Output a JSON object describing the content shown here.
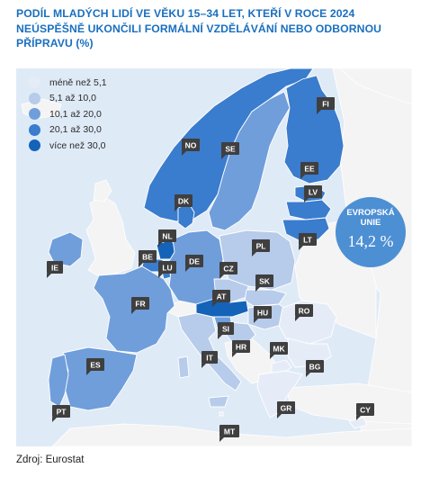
{
  "title": {
    "lines": [
      "PODÍL MLADÝCH LIDÍ VE VĚKU 15–34 LET, KTEŘÍ V ROCE 2024",
      "NEÚSPĚŠNĚ UKONČILI FORMÁLNÍ VZDĚLÁVÁNÍ NEBO ODBORNOU",
      "PŘÍPRAVU (%)"
    ]
  },
  "legend": {
    "items": [
      {
        "label": "méně než 5,1",
        "color": "#e6ecf7"
      },
      {
        "label": "5,1  až 10,0",
        "color": "#b7cbea"
      },
      {
        "label": "10,1 až 20,0",
        "color": "#6f9edb"
      },
      {
        "label": "20,1 až 30,0",
        "color": "#3a7ccd"
      },
      {
        "label": "více než 30,0",
        "color": "#1463b8"
      }
    ]
  },
  "eu_average": {
    "label_line1": "EVROPSKÁ",
    "label_line2": "UNIE",
    "value": "14,2 %"
  },
  "colors": {
    "sea": "#dfeaf7",
    "non_eu_land": "#f4f4f4",
    "tag_bg": "#3f3f3f",
    "tag_text": "#ffffff",
    "title": "#1a6fbf"
  },
  "countries": [
    {
      "code": "FI",
      "class": 3
    },
    {
      "code": "SE",
      "class": 2
    },
    {
      "code": "NO",
      "class": 3
    },
    {
      "code": "EE",
      "class": 3
    },
    {
      "code": "LV",
      "class": 3
    },
    {
      "code": "LT",
      "class": 3
    },
    {
      "code": "DK",
      "class": 3
    },
    {
      "code": "NL",
      "class": 4
    },
    {
      "code": "BE",
      "class": 3
    },
    {
      "code": "LU",
      "class": 3
    },
    {
      "code": "DE",
      "class": 2
    },
    {
      "code": "PL",
      "class": 1
    },
    {
      "code": "CZ",
      "class": 1
    },
    {
      "code": "SK",
      "class": 1
    },
    {
      "code": "AT",
      "class": 4
    },
    {
      "code": "FR",
      "class": 2
    },
    {
      "code": "IE",
      "class": 2
    },
    {
      "code": "HU",
      "class": 1
    },
    {
      "code": "RO",
      "class": 0
    },
    {
      "code": "SI",
      "class": 2
    },
    {
      "code": "HR",
      "class": 1
    },
    {
      "code": "IT",
      "class": 1
    },
    {
      "code": "ES",
      "class": 2
    },
    {
      "code": "PT",
      "class": 2
    },
    {
      "code": "MK",
      "class": 0
    },
    {
      "code": "BG",
      "class": 0
    },
    {
      "code": "GR",
      "class": 0
    },
    {
      "code": "CY",
      "class": 0
    },
    {
      "code": "MT",
      "class": 0
    }
  ],
  "source": "Zdroj: Eurostat"
}
